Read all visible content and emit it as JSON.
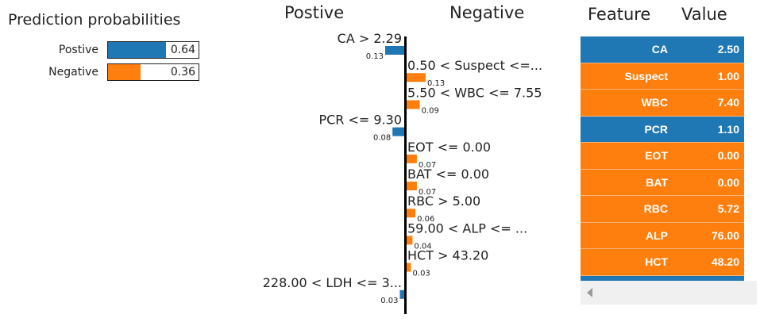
{
  "colors": {
    "positive": "#1f77b4",
    "negative": "#ff7f0e"
  },
  "prediction": {
    "title": "Prediction probabilities",
    "classes": [
      {
        "label": "Postive",
        "value": 0.64,
        "value_text": "0.64",
        "color": "#1f77b4"
      },
      {
        "label": "Negative",
        "value": 0.36,
        "value_text": "0.36",
        "color": "#ff7f0e"
      }
    ]
  },
  "chart_data": {
    "type": "bar",
    "orientation": "horizontal-diverging",
    "left_title": "Postive",
    "right_title": "Negative",
    "categories": [
      "CA > 2.29",
      "0.50 < Suspect <=...",
      "5.50 < WBC <= 7.55",
      "PCR <= 9.30",
      "EOT <= 0.00",
      "BAT <= 0.00",
      "RBC > 5.00",
      "59.00 < ALP <= ...",
      "HCT > 43.20",
      "228.00 < LDH <= 3..."
    ],
    "series": [
      {
        "name": "Postive",
        "values": [
          0.13,
          null,
          null,
          0.08,
          null,
          null,
          null,
          null,
          null,
          0.03
        ]
      },
      {
        "name": "Negative",
        "values": [
          null,
          0.13,
          0.09,
          null,
          0.07,
          0.07,
          0.06,
          0.04,
          0.03,
          null
        ]
      }
    ],
    "value_labels": [
      "0.13",
      "0.13",
      "0.09",
      "0.08",
      "0.07",
      "0.07",
      "0.06",
      "0.04",
      "0.03",
      "0.03"
    ],
    "side": [
      "Postive",
      "Negative",
      "Negative",
      "Postive",
      "Negative",
      "Negative",
      "Negative",
      "Negative",
      "Negative",
      "Postive"
    ],
    "xlim": [
      0,
      0.13
    ]
  },
  "table": {
    "headers": [
      "Feature",
      "Value"
    ],
    "rows": [
      {
        "feature": "CA",
        "value": "2.50",
        "side": "Postive"
      },
      {
        "feature": "Suspect",
        "value": "1.00",
        "side": "Negative"
      },
      {
        "feature": "WBC",
        "value": "7.40",
        "side": "Negative"
      },
      {
        "feature": "PCR",
        "value": "1.10",
        "side": "Postive"
      },
      {
        "feature": "EOT",
        "value": "0.00",
        "side": "Negative"
      },
      {
        "feature": "BAT",
        "value": "0.00",
        "side": "Negative"
      },
      {
        "feature": "RBC",
        "value": "5.72",
        "side": "Negative"
      },
      {
        "feature": "ALP",
        "value": "76.00",
        "side": "Negative"
      },
      {
        "feature": "HCT",
        "value": "48.20",
        "side": "Negative"
      }
    ]
  }
}
